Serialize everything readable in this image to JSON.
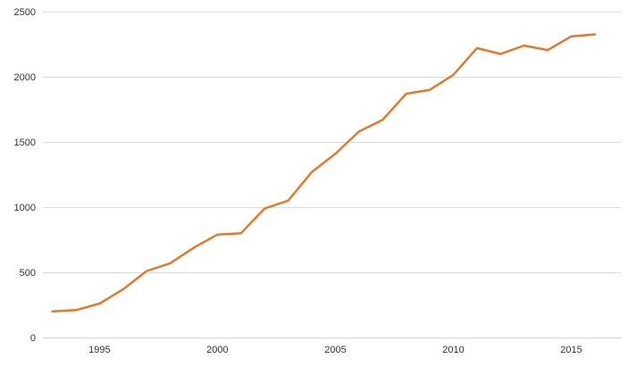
{
  "chart_data": {
    "type": "line",
    "title": "",
    "xlabel": "",
    "ylabel": "",
    "x": [
      1993,
      1994,
      1995,
      1996,
      1997,
      1998,
      1999,
      2000,
      2001,
      2002,
      2003,
      2004,
      2005,
      2006,
      2007,
      2008,
      2009,
      2010,
      2011,
      2012,
      2013,
      2014,
      2015,
      2016
    ],
    "series": [
      {
        "values": [
          200,
          210,
          260,
          370,
          510,
          570,
          690,
          790,
          800,
          990,
          1050,
          1270,
          1410,
          1580,
          1670,
          1870,
          1900,
          2015,
          2220,
          2175,
          2240,
          2205,
          2310,
          2325
        ]
      }
    ],
    "xlim": [
      1992.6,
      2017.1
    ],
    "ylim": [
      0,
      2500
    ],
    "y_ticks": [
      0,
      500,
      1000,
      1500,
      2000,
      2500
    ],
    "y_tick_labels": [
      "0",
      "500",
      "1000",
      "1500",
      "2000",
      "2500"
    ],
    "x_ticks": [
      1995,
      2000,
      2005,
      2010,
      2015
    ],
    "x_tick_labels": [
      "1995",
      "2000",
      "2005",
      "2010",
      "2015"
    ],
    "grid": "horizontal",
    "legend": "none",
    "colors": {
      "series": "#e07b2a",
      "grid": "#dcdcdc",
      "text": "#333333"
    }
  }
}
